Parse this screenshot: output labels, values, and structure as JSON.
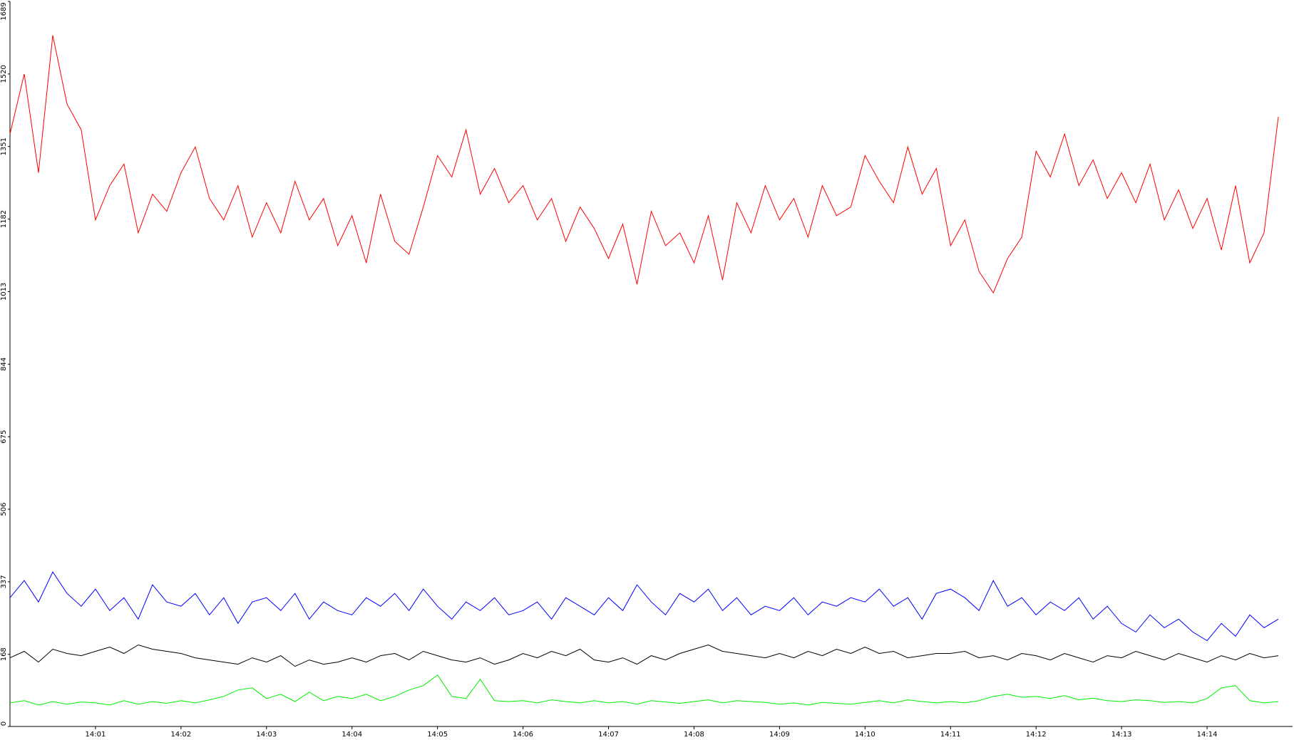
{
  "chart_data": {
    "type": "line",
    "categories": [
      null,
      null,
      null,
      null,
      null,
      null,
      "14:01",
      null,
      null,
      null,
      null,
      null,
      "14:02",
      null,
      null,
      null,
      null,
      null,
      "14:03",
      null,
      null,
      null,
      null,
      null,
      "14:04",
      null,
      null,
      null,
      null,
      null,
      "14:05",
      null,
      null,
      null,
      null,
      null,
      "14:06",
      null,
      null,
      null,
      null,
      null,
      "14:07",
      null,
      null,
      null,
      null,
      null,
      "14:08",
      null,
      null,
      null,
      null,
      null,
      "14:09",
      null,
      null,
      null,
      null,
      null,
      "14:10",
      null,
      null,
      null,
      null,
      null,
      "14:11",
      null,
      null,
      null,
      null,
      null,
      "14:12",
      null,
      null,
      null,
      null,
      null,
      "14:13",
      null,
      null,
      null,
      null,
      null,
      "14:14",
      null,
      null,
      null,
      null,
      null
    ],
    "series": [
      {
        "color": "#ff0000",
        "values": [
          1380,
          1520,
          1290,
          1610,
          1450,
          1390,
          1180,
          1260,
          1310,
          1150,
          1240,
          1200,
          1290,
          1350,
          1230,
          1180,
          1260,
          1140,
          1220,
          1150,
          1270,
          1180,
          1230,
          1120,
          1190,
          1080,
          1240,
          1130,
          1100,
          1210,
          1330,
          1280,
          1390,
          1240,
          1300,
          1220,
          1260,
          1180,
          1230,
          1130,
          1210,
          1160,
          1090,
          1170,
          1030,
          1200,
          1120,
          1150,
          1080,
          1190,
          1040,
          1220,
          1150,
          1260,
          1180,
          1230,
          1140,
          1260,
          1190,
          1210,
          1330,
          1270,
          1220,
          1350,
          1240,
          1300,
          1120,
          1180,
          1060,
          1010,
          1090,
          1140,
          1340,
          1280,
          1380,
          1260,
          1320,
          1230,
          1290,
          1220,
          1310,
          1180,
          1250,
          1160,
          1230,
          1110,
          1260,
          1080,
          1150,
          1420
        ]
      },
      {
        "color": "#0000ff",
        "values": [
          300,
          340,
          290,
          360,
          310,
          280,
          320,
          270,
          300,
          250,
          330,
          290,
          280,
          310,
          260,
          300,
          240,
          290,
          300,
          270,
          310,
          250,
          290,
          270,
          260,
          300,
          280,
          310,
          270,
          320,
          280,
          250,
          290,
          270,
          300,
          260,
          270,
          290,
          250,
          300,
          280,
          260,
          300,
          270,
          330,
          290,
          260,
          310,
          290,
          320,
          270,
          300,
          260,
          280,
          270,
          300,
          260,
          290,
          280,
          300,
          290,
          320,
          280,
          300,
          250,
          310,
          320,
          300,
          270,
          340,
          280,
          300,
          260,
          290,
          270,
          300,
          250,
          280,
          240,
          220,
          260,
          230,
          250,
          220,
          200,
          240,
          210,
          260,
          230,
          250
        ]
      },
      {
        "color": "#000000",
        "values": [
          160,
          175,
          150,
          180,
          170,
          165,
          175,
          185,
          170,
          190,
          180,
          175,
          170,
          160,
          155,
          150,
          145,
          160,
          150,
          165,
          140,
          155,
          145,
          150,
          160,
          150,
          165,
          170,
          155,
          175,
          165,
          155,
          150,
          160,
          145,
          155,
          170,
          160,
          175,
          165,
          180,
          155,
          150,
          160,
          145,
          165,
          155,
          170,
          180,
          190,
          175,
          170,
          165,
          160,
          170,
          160,
          175,
          165,
          180,
          170,
          185,
          170,
          175,
          160,
          165,
          170,
          170,
          175,
          160,
          165,
          155,
          170,
          165,
          155,
          170,
          160,
          150,
          165,
          160,
          175,
          165,
          155,
          170,
          160,
          150,
          165,
          155,
          170,
          160,
          165
        ]
      },
      {
        "color": "#00ee00",
        "values": [
          55,
          60,
          50,
          58,
          52,
          57,
          55,
          50,
          60,
          52,
          58,
          54,
          60,
          55,
          62,
          70,
          85,
          90,
          65,
          75,
          58,
          80,
          60,
          70,
          65,
          75,
          60,
          70,
          85,
          95,
          120,
          70,
          65,
          110,
          60,
          58,
          60,
          55,
          62,
          58,
          55,
          60,
          55,
          58,
          52,
          60,
          57,
          54,
          58,
          62,
          55,
          60,
          58,
          56,
          52,
          55,
          50,
          56,
          54,
          52,
          56,
          60,
          55,
          62,
          58,
          55,
          58,
          55,
          60,
          70,
          75,
          68,
          70,
          65,
          72,
          62,
          66,
          60,
          58,
          62,
          60,
          56,
          58,
          55,
          65,
          90,
          95,
          60,
          55,
          58
        ]
      }
    ],
    "ylim": [
      0,
      1689
    ],
    "yticks": [
      0,
      168,
      337,
      506,
      675,
      844,
      1013,
      1182,
      1351,
      1520,
      1689
    ]
  }
}
